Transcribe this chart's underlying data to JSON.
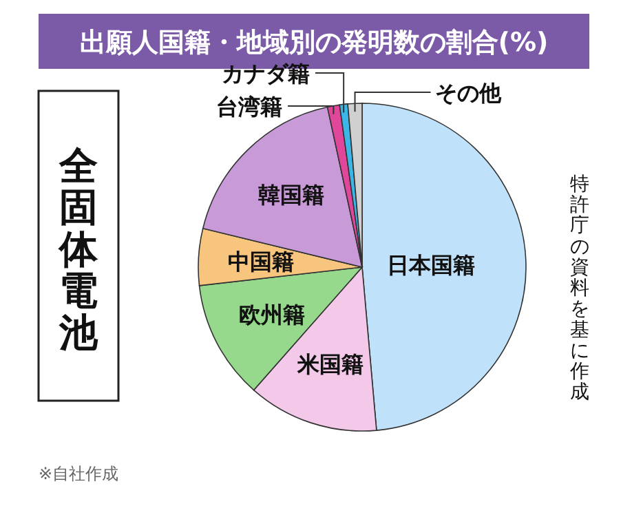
{
  "chart_data": {
    "type": "pie",
    "title": "出願人国籍・地域別の発明数の割合(%)",
    "subtitle": "全固体電池",
    "categories": [
      "日本国籍",
      "米国籍",
      "欧州籍",
      "中国籍",
      "韓国籍",
      "台湾籍",
      "カナダ籍",
      "その他"
    ],
    "values": [
      48.6,
      12.9,
      11.7,
      5.6,
      17.8,
      1.2,
      0.8,
      1.4
    ],
    "colors": [
      "#bfe2fa",
      "#f3c8e8",
      "#96d98c",
      "#f7c57e",
      "#c99ad8",
      "#e0479b",
      "#3bb6e6",
      "#d0d0d0"
    ],
    "annotations": [
      "特許庁の資料を基に作成",
      "※自社作成"
    ]
  }
}
